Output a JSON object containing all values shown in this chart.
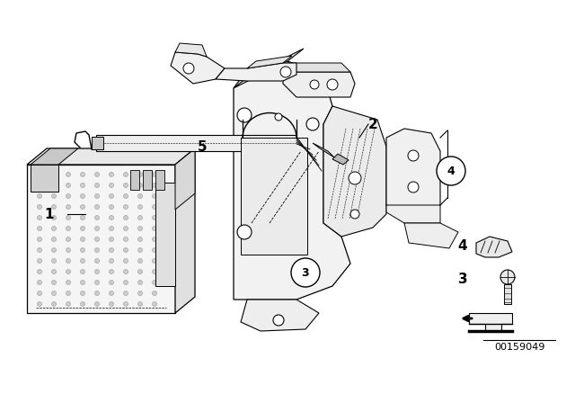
{
  "background_color": "#ffffff",
  "image_id": "00159049",
  "figsize": [
    6.4,
    4.48
  ],
  "dpi": 100,
  "line_color": "#000000",
  "label_fontsize": 11,
  "id_fontsize": 10
}
